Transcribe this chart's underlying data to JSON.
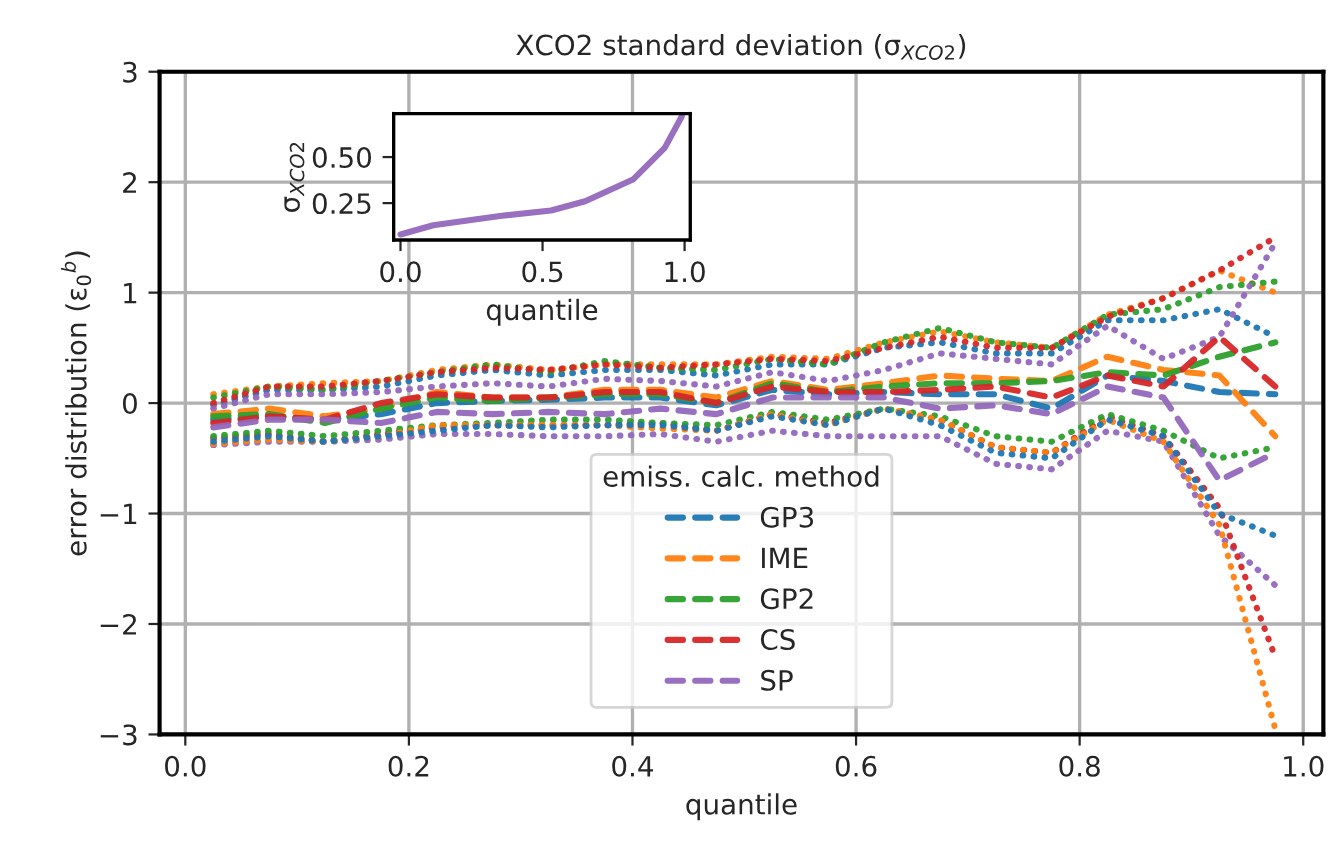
{
  "chart_data": [
    {
      "type": "line",
      "title": "XCO2 standard deviation (σ$_{XCO2}$)",
      "xlabel": "quantile",
      "ylabel": "error distribution (ε$_{0}$$^{b}$)",
      "legend_title": "emiss. calc. method",
      "legend": "bottom",
      "grid": true,
      "x": [
        0.025,
        0.075,
        0.125,
        0.175,
        0.225,
        0.275,
        0.325,
        0.375,
        0.425,
        0.475,
        0.525,
        0.575,
        0.625,
        0.675,
        0.725,
        0.775,
        0.825,
        0.875,
        0.925,
        0.975
      ],
      "xlim": [
        -0.023,
        1.018
      ],
      "xticks": [
        {
          "value": 0.0,
          "label": "0.0"
        },
        {
          "value": 0.2,
          "label": "0.2"
        },
        {
          "value": 0.4,
          "label": "0.4"
        },
        {
          "value": 0.6,
          "label": "0.6"
        },
        {
          "value": 0.8,
          "label": "0.8"
        },
        {
          "value": 1.0,
          "label": "1.0"
        }
      ],
      "ylim": [
        -3,
        3
      ],
      "yticks": [
        {
          "value": -3,
          "label": "−3"
        },
        {
          "value": -2,
          "label": "−2"
        },
        {
          "value": -1,
          "label": "−1"
        },
        0,
        1,
        2,
        3
      ],
      "series": [
        {
          "name": "GP3",
          "color": "#1f77b4",
          "line_style": "dashed",
          "values": [
            -0.15,
            -0.12,
            -0.15,
            -0.1,
            0.0,
            0.02,
            0.03,
            0.05,
            0.05,
            -0.02,
            0.12,
            0.08,
            0.1,
            0.08,
            0.08,
            -0.05,
            0.25,
            0.2,
            0.1,
            0.08
          ]
        },
        {
          "name": "IME",
          "color": "#ff7f0e",
          "line_style": "dashed",
          "values": [
            -0.1,
            -0.05,
            -0.12,
            -0.05,
            0.1,
            0.05,
            0.05,
            0.12,
            0.12,
            0.05,
            0.2,
            0.12,
            0.18,
            0.25,
            0.22,
            0.2,
            0.42,
            0.3,
            0.25,
            -0.3
          ]
        },
        {
          "name": "GP2",
          "color": "#2ca02c",
          "line_style": "dashed",
          "values": [
            -0.12,
            -0.1,
            -0.18,
            -0.05,
            0.05,
            0.02,
            0.05,
            0.08,
            0.08,
            0.0,
            0.18,
            0.1,
            0.15,
            0.18,
            0.18,
            0.2,
            0.28,
            0.25,
            0.42,
            0.55
          ]
        },
        {
          "name": "CS",
          "color": "#d62728",
          "line_style": "dashed",
          "values": [
            -0.18,
            -0.12,
            -0.15,
            0.0,
            0.08,
            0.05,
            0.05,
            0.1,
            0.1,
            0.0,
            0.15,
            0.1,
            0.1,
            0.12,
            0.15,
            0.05,
            0.25,
            0.15,
            0.6,
            0.15
          ]
        },
        {
          "name": "SP",
          "color": "#9467bd",
          "line_style": "dashed",
          "values": [
            -0.22,
            -0.15,
            -0.15,
            -0.18,
            -0.08,
            -0.1,
            -0.08,
            -0.1,
            -0.05,
            -0.1,
            0.05,
            0.05,
            0.05,
            -0.05,
            -0.02,
            -0.1,
            0.15,
            0.05,
            -0.7,
            -0.45
          ]
        },
        {
          "color": "#1f77b4",
          "line_style": "dotted",
          "values": [
            -0.02,
            0.12,
            0.12,
            0.15,
            0.25,
            0.3,
            0.25,
            0.3,
            0.3,
            0.25,
            0.35,
            0.35,
            0.5,
            0.55,
            0.45,
            0.45,
            0.75,
            0.75,
            0.85,
            0.6
          ]
        },
        {
          "color": "#ff7f0e",
          "line_style": "dotted",
          "values": [
            0.08,
            0.15,
            0.18,
            0.2,
            0.3,
            0.35,
            0.3,
            0.35,
            0.35,
            0.35,
            0.42,
            0.4,
            0.55,
            0.65,
            0.55,
            0.5,
            0.8,
            0.95,
            1.2,
            1.0
          ]
        },
        {
          "color": "#2ca02c",
          "line_style": "dotted",
          "values": [
            0.05,
            0.15,
            0.12,
            0.2,
            0.28,
            0.35,
            0.28,
            0.38,
            0.32,
            0.3,
            0.4,
            0.35,
            0.55,
            0.68,
            0.55,
            0.5,
            0.8,
            0.85,
            1.05,
            1.1
          ]
        },
        {
          "color": "#d62728",
          "line_style": "dotted",
          "values": [
            0.0,
            0.15,
            0.15,
            0.2,
            0.28,
            0.32,
            0.3,
            0.35,
            0.32,
            0.35,
            0.4,
            0.38,
            0.5,
            0.6,
            0.5,
            0.5,
            0.78,
            0.95,
            1.2,
            1.5
          ]
        },
        {
          "color": "#9467bd",
          "line_style": "dotted",
          "values": [
            -0.05,
            0.08,
            0.08,
            0.1,
            0.15,
            0.18,
            0.15,
            0.22,
            0.2,
            0.15,
            0.28,
            0.2,
            0.3,
            0.45,
            0.4,
            0.35,
            0.7,
            0.4,
            0.6,
            1.45
          ]
        },
        {
          "color": "#1f77b4",
          "line_style": "dotted",
          "values": [
            -0.35,
            -0.3,
            -0.35,
            -0.3,
            -0.25,
            -0.2,
            -0.22,
            -0.2,
            -0.2,
            -0.25,
            -0.12,
            -0.2,
            -0.05,
            -0.2,
            -0.45,
            -0.5,
            -0.15,
            -0.3,
            -1.0,
            -1.2
          ]
        },
        {
          "color": "#ff7f0e",
          "line_style": "dotted",
          "values": [
            -0.37,
            -0.33,
            -0.35,
            -0.3,
            -0.2,
            -0.2,
            -0.2,
            -0.2,
            -0.23,
            -0.25,
            -0.1,
            -0.2,
            -0.05,
            -0.15,
            -0.4,
            -0.45,
            -0.15,
            -0.35,
            -1.1,
            -2.95
          ]
        },
        {
          "color": "#2ca02c",
          "line_style": "dotted",
          "values": [
            -0.3,
            -0.25,
            -0.3,
            -0.25,
            -0.2,
            -0.18,
            -0.15,
            -0.15,
            -0.18,
            -0.2,
            -0.08,
            -0.15,
            -0.05,
            -0.12,
            -0.3,
            -0.35,
            -0.1,
            -0.25,
            -0.5,
            -0.4
          ]
        },
        {
          "color": "#d62728",
          "line_style": "dotted",
          "values": [
            -0.32,
            -0.28,
            -0.35,
            -0.28,
            -0.22,
            -0.2,
            -0.2,
            -0.2,
            -0.18,
            -0.25,
            -0.1,
            -0.18,
            -0.05,
            -0.15,
            -0.4,
            -0.45,
            -0.12,
            -0.3,
            -0.95,
            -2.3
          ]
        },
        {
          "color": "#9467bd",
          "line_style": "dotted",
          "values": [
            -0.38,
            -0.35,
            -0.35,
            -0.33,
            -0.28,
            -0.28,
            -0.3,
            -0.3,
            -0.28,
            -0.35,
            -0.25,
            -0.3,
            -0.3,
            -0.3,
            -0.55,
            -0.6,
            -0.25,
            -0.35,
            -1.2,
            -1.65
          ]
        }
      ]
    },
    {
      "type": "line",
      "xlabel": "quantile",
      "ylabel": "σ$_{XCO2}$",
      "grid": false,
      "xlim": [
        -0.024,
        1.02
      ],
      "xticks": [
        {
          "value": 0.0,
          "label": "0.0"
        },
        {
          "value": 0.5,
          "label": "0.5"
        },
        {
          "value": 1.0,
          "label": "1.0"
        }
      ],
      "ylim": [
        0.05,
        0.736
      ],
      "yticks": [
        {
          "value": 0.25,
          "label": "0.25"
        },
        {
          "value": 0.5,
          "label": "0.50"
        }
      ],
      "series": [
        {
          "color": "#9467bd",
          "line_style": "solid",
          "x": [
            0,
            0.115,
            0.35,
            0.53,
            0.65,
            0.82,
            0.93,
            0.99
          ],
          "values": [
            0.08,
            0.13,
            0.18,
            0.21,
            0.26,
            0.38,
            0.55,
            0.72
          ]
        }
      ]
    }
  ]
}
